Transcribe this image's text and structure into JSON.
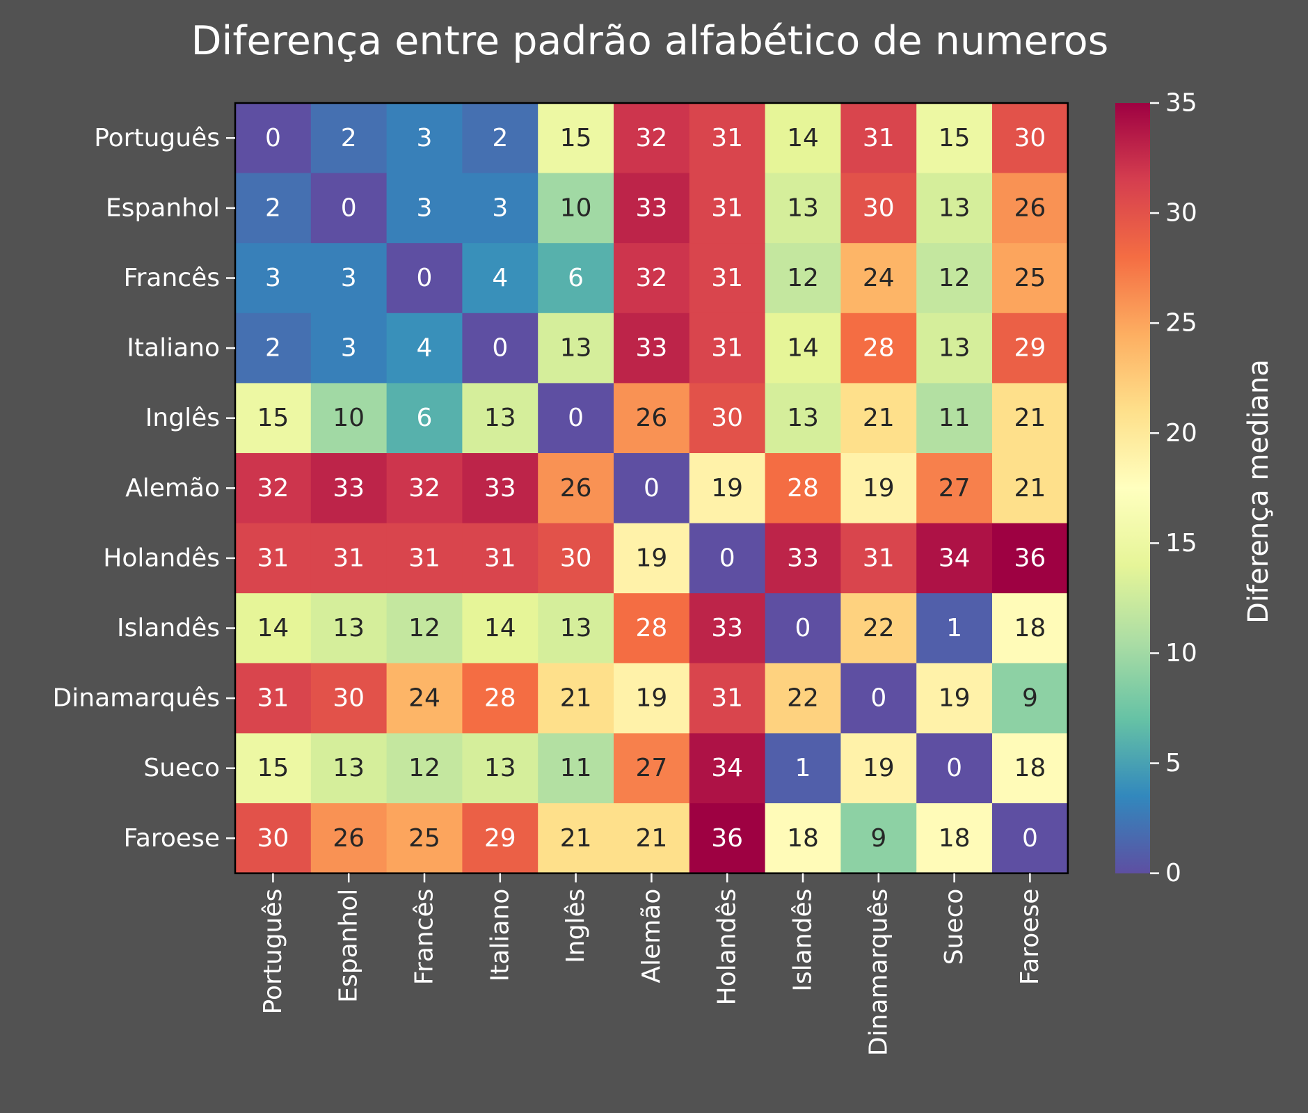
{
  "chart_data": {
    "type": "heatmap",
    "title": "Diferença entre padrão alfabético de numeros",
    "xlabel": "",
    "ylabel": "",
    "categories": [
      "Português",
      "Espanhol",
      "Francês",
      "Italiano",
      "Inglês",
      "Alemão",
      "Holandês",
      "Islandês",
      "Dinamarquês",
      "Sueco",
      "Faroese"
    ],
    "values": [
      [
        0,
        2,
        3,
        2,
        15,
        32,
        31,
        14,
        31,
        15,
        30
      ],
      [
        2,
        0,
        3,
        3,
        10,
        33,
        31,
        13,
        30,
        13,
        26
      ],
      [
        3,
        3,
        0,
        4,
        6,
        32,
        31,
        12,
        24,
        12,
        25
      ],
      [
        2,
        3,
        4,
        0,
        13,
        33,
        31,
        14,
        28,
        13,
        29
      ],
      [
        15,
        10,
        6,
        13,
        0,
        26,
        30,
        13,
        21,
        11,
        21
      ],
      [
        32,
        33,
        32,
        33,
        26,
        0,
        19,
        28,
        19,
        27,
        21
      ],
      [
        31,
        31,
        31,
        31,
        30,
        19,
        0,
        33,
        31,
        34,
        36
      ],
      [
        14,
        13,
        12,
        14,
        13,
        28,
        33,
        0,
        22,
        1,
        18
      ],
      [
        31,
        30,
        24,
        28,
        21,
        19,
        31,
        22,
        0,
        19,
        9
      ],
      [
        15,
        13,
        12,
        13,
        11,
        27,
        34,
        1,
        19,
        0,
        18
      ],
      [
        30,
        26,
        25,
        29,
        21,
        21,
        36,
        18,
        9,
        18,
        0
      ]
    ],
    "colorbar": {
      "label": "Diferença mediana",
      "range": [
        0,
        35
      ],
      "ticks": [
        0,
        5,
        10,
        15,
        20,
        25,
        30,
        35
      ],
      "colormap": "Spectral_r"
    },
    "colors": {
      "background": "#525252",
      "text": "#ffffff",
      "dark_text": "#262626"
    }
  }
}
